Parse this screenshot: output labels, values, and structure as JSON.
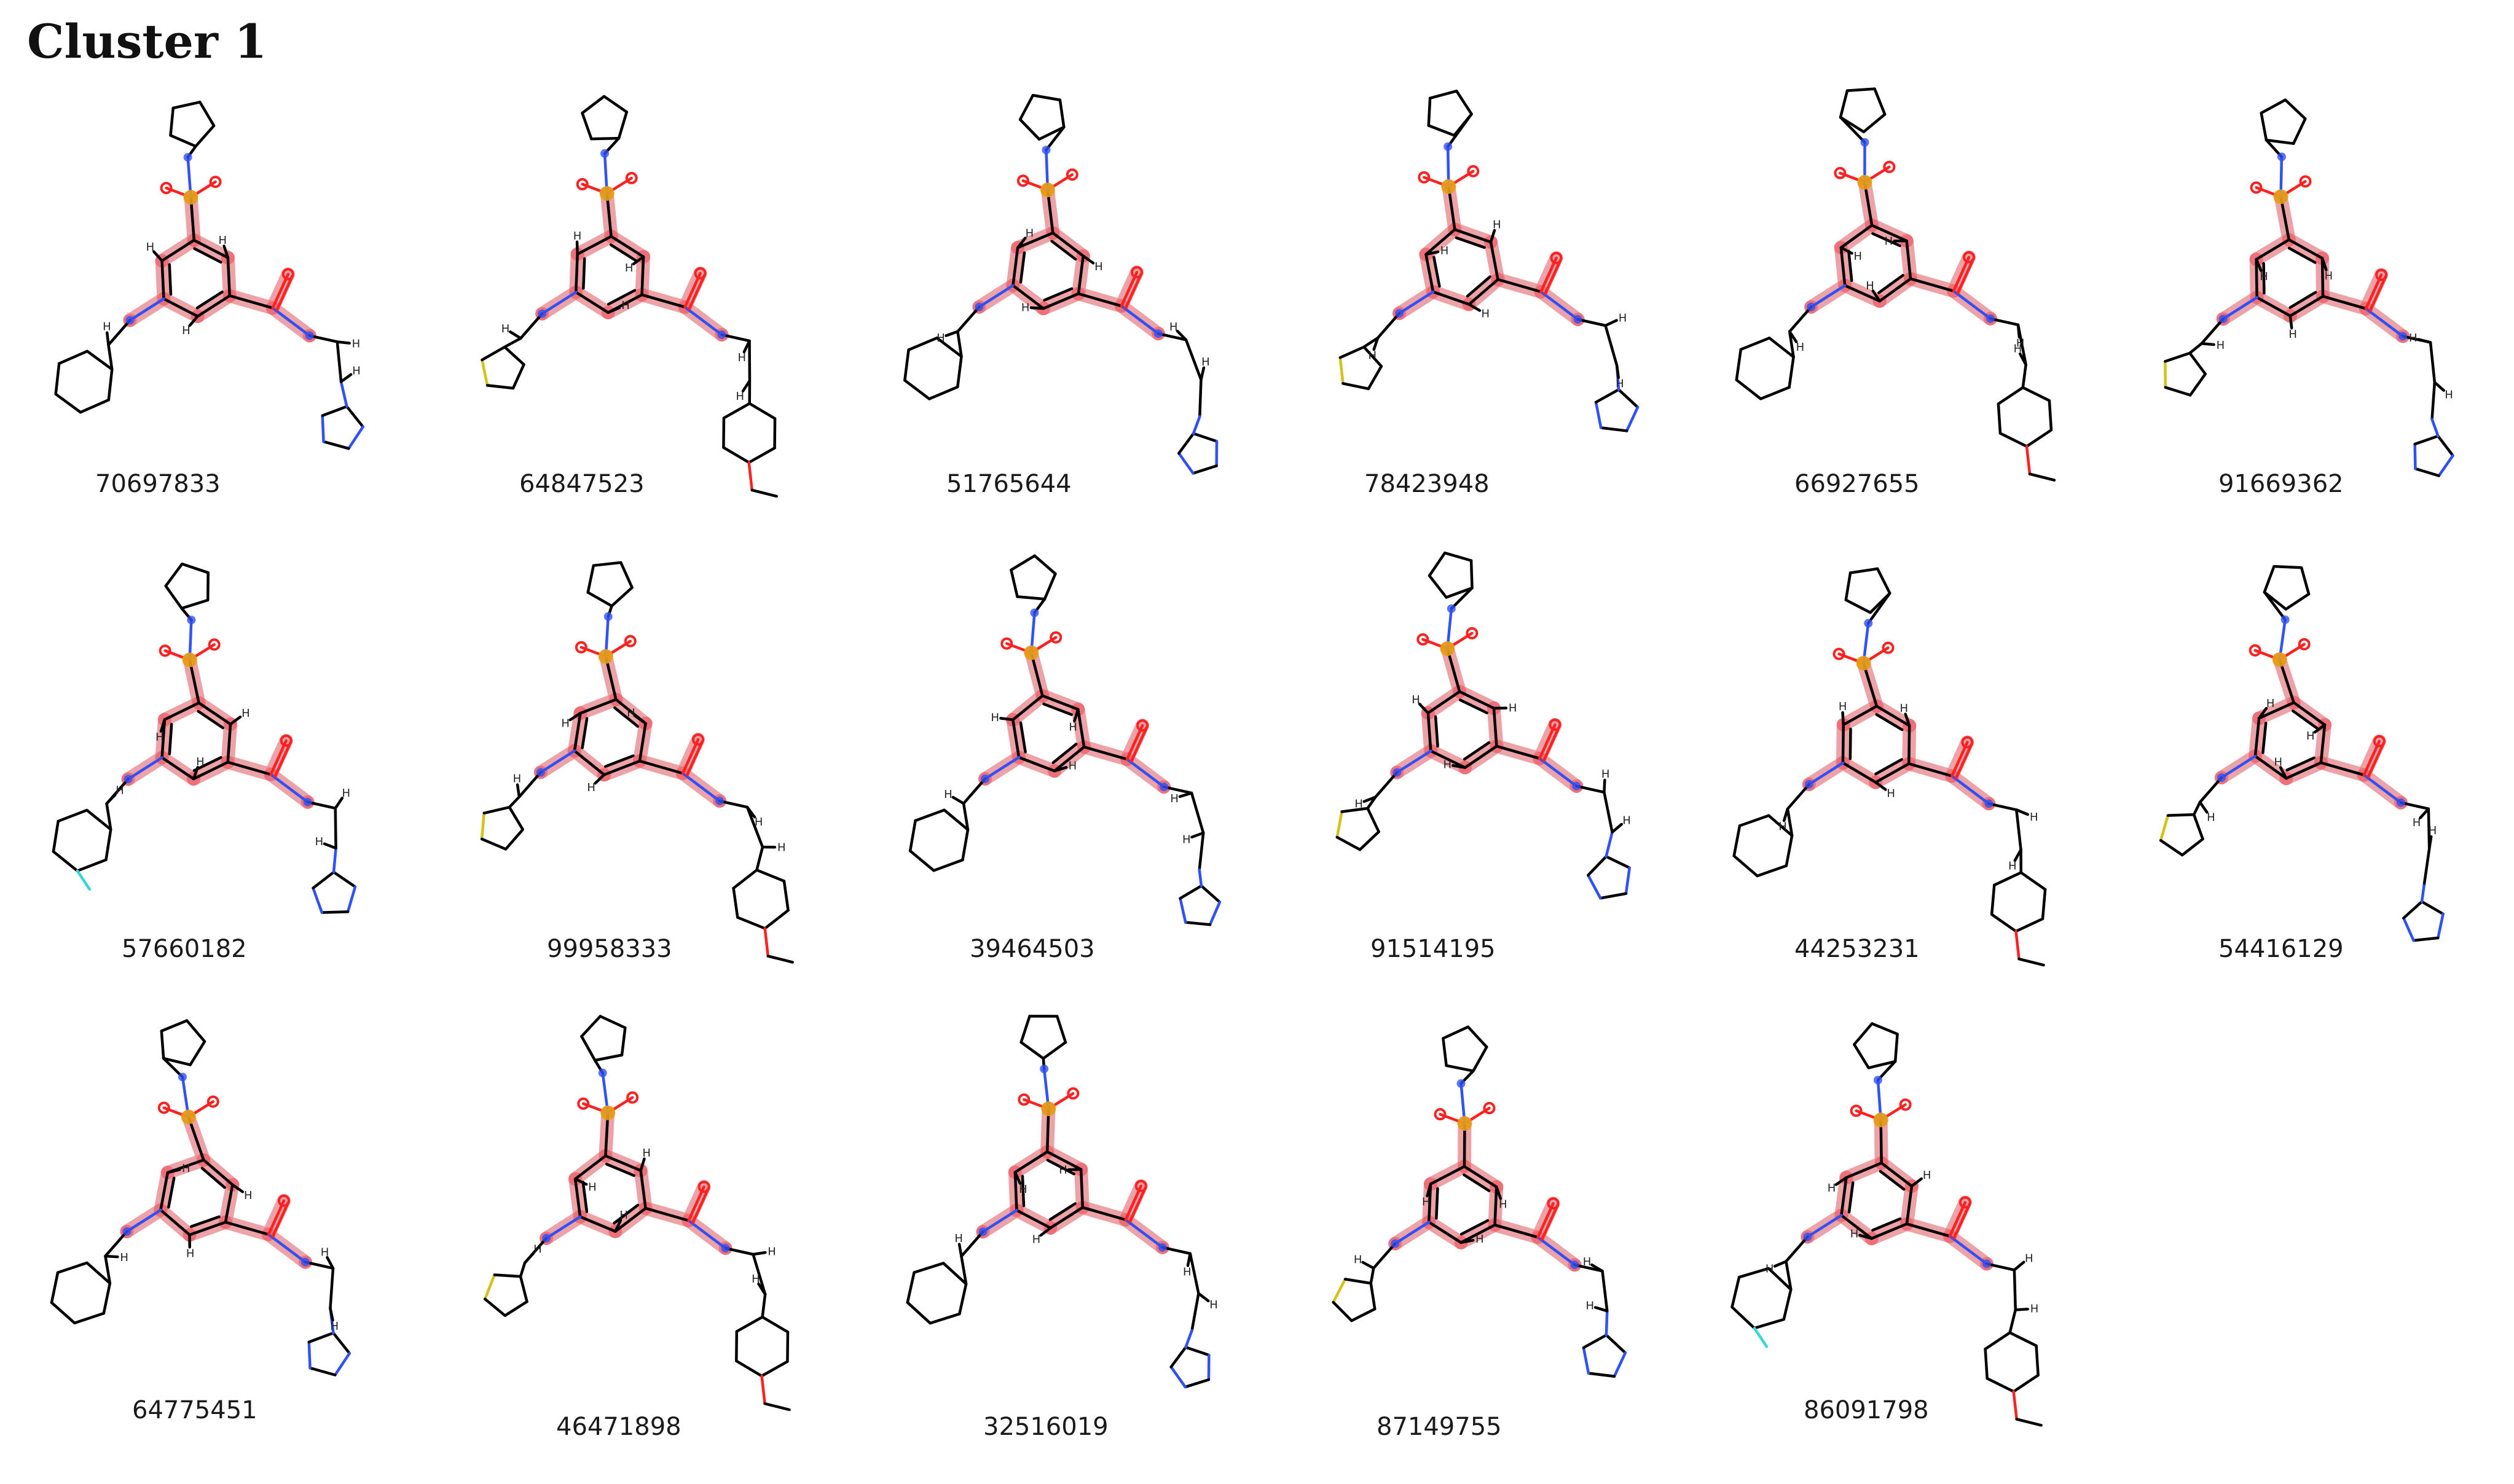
{
  "page": {
    "title": "Cluster 1"
  },
  "colors": {
    "bond": "#000000",
    "highlight": "#e8838a",
    "highlight_atom": "#ee6a72",
    "nitrogen": "#3050f8",
    "oxygen": "#ff2020",
    "sulfur": "#e6a117",
    "sulfur_ring": "#d4c21a",
    "fluorine": "#3ad6d6",
    "hydrogen": "#222222"
  },
  "molecules": [
    {
      "id": "70697833",
      "variant": 0
    },
    {
      "id": "64847523",
      "variant": 1
    },
    {
      "id": "51765644",
      "variant": 2
    },
    {
      "id": "78423948",
      "variant": 3
    },
    {
      "id": "66927655",
      "variant": 4
    },
    {
      "id": "91669362",
      "variant": 5
    },
    {
      "id": "57660182",
      "variant": 6
    },
    {
      "id": "99958333",
      "variant": 7
    },
    {
      "id": "39464503",
      "variant": 8
    },
    {
      "id": "91514195",
      "variant": 9
    },
    {
      "id": "44253231",
      "variant": 10
    },
    {
      "id": "54416129",
      "variant": 11
    },
    {
      "id": "64775451",
      "variant": 12
    },
    {
      "id": "46471898",
      "variant": 13
    },
    {
      "id": "32516019",
      "variant": 14
    },
    {
      "id": "87149755",
      "variant": 15
    },
    {
      "id": "86091798",
      "variant": 16
    }
  ]
}
